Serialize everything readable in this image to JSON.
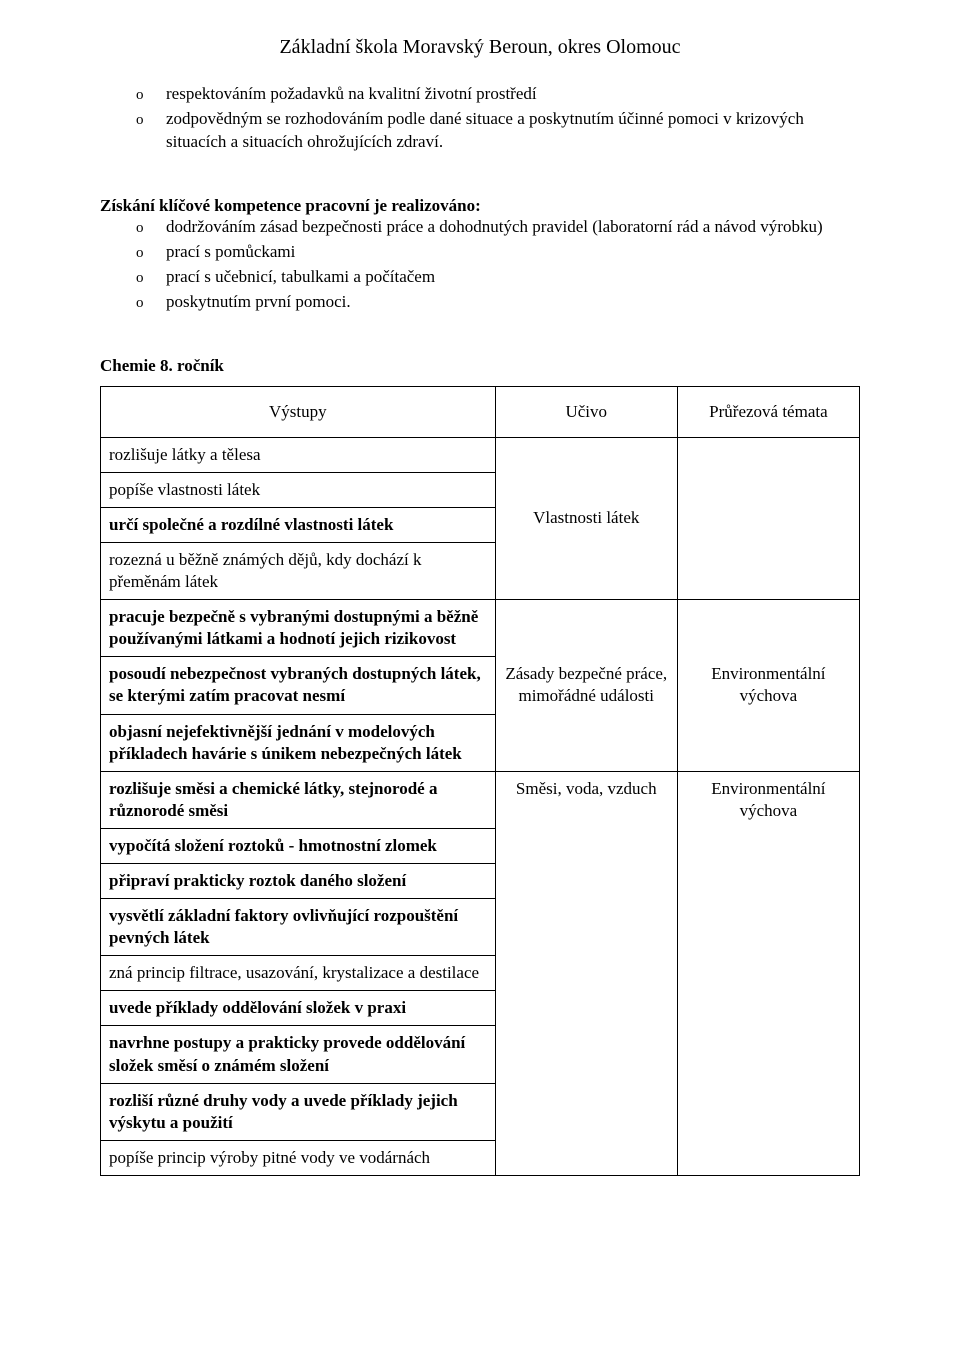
{
  "header": {
    "title": "Základní škola Moravský Beroun, okres Olomouc"
  },
  "bullets_top": [
    "respektováním požadavků na kvalitní životní prostředí",
    "zodpovědným se rozhodováním podle dané situace a poskytnutím účinné pomoci v krizových situacích a situacích ohrožujících zdraví."
  ],
  "section2": {
    "heading": "Získání klíčové kompetence pracovní je realizováno:",
    "bullets": [
      "dodržováním zásad bezpečnosti práce a dohodnutých pravidel (laboratorní rád a návod výrobku)",
      "prací s pomůckami",
      "prací s učebnicí, tabulkami a počítačem",
      "poskytnutím první pomoci."
    ]
  },
  "grade_heading": "Chemie 8. ročník",
  "table": {
    "headers": {
      "col1": "Výstupy",
      "col2": "Učivo",
      "col3": "Průřezová témata"
    },
    "rows": [
      {
        "text": "rozlišuje látky a tělesa",
        "bold": false
      },
      {
        "text": "popíše vlastnosti látek",
        "bold": false
      },
      {
        "text": "určí společné a rozdílné vlastnosti látek",
        "bold": true
      },
      {
        "text": "rozezná u běžně známých dějů, kdy dochází k přeměnám látek",
        "bold": false
      },
      {
        "text": "pracuje bezpečně s vybranými dostupnými a běžně používanými látkami a hodnotí jejich rizikovost",
        "bold": true
      },
      {
        "text": "posoudí nebezpečnost vybraných dostupných látek, se kterými zatím pracovat nesmí",
        "bold": true
      },
      {
        "text": "objasní nejefektivnější jednání v modelových příkladech havárie s únikem nebezpečných látek",
        "bold": true
      },
      {
        "text": "rozlišuje směsi a chemické látky, stejnorodé a různorodé směsi",
        "bold": true
      },
      {
        "text": "vypočítá složení roztoků - hmotnostní zlomek",
        "bold": true
      },
      {
        "text": "připraví prakticky roztok daného složení",
        "bold": true
      },
      {
        "text": "vysvětlí základní faktory ovlivňující rozpouštění pevných látek",
        "bold": true
      },
      {
        "text": "zná princip filtrace, usazování, krystalizace a destilace",
        "bold": false
      },
      {
        "text": "uvede příklady oddělování složek v praxi",
        "bold": true
      },
      {
        "text": "navrhne postupy a prakticky provede oddělování složek směsí o známém složení",
        "bold": true
      },
      {
        "text": "rozliší různé druhy vody a uvede příklady jejich výskytu a použití",
        "bold": true
      },
      {
        "text": "popíše princip výroby pitné vody ve vodárnách",
        "bold": false
      }
    ],
    "ucivo": {
      "g1": "Vlastnosti látek",
      "g2": "Zásady bezpečné práce, mimořádné události",
      "g3": "Směsi, voda, vzduch"
    },
    "prurez": {
      "g1": "",
      "g2": "Environmentální výchova",
      "g3": "Environmentální výchova"
    }
  },
  "bullet_glyph": "o"
}
